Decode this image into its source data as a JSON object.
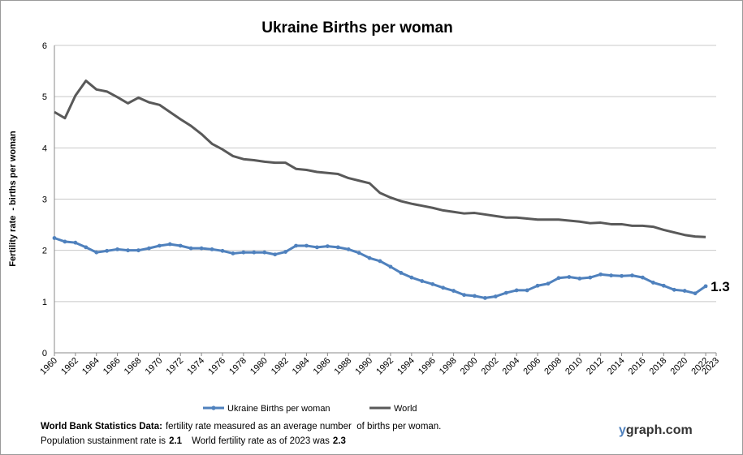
{
  "chart_data": {
    "type": "line",
    "title": "Ukraine Births per woman",
    "ylabel": "Fertility rate  - births per woman",
    "x": [
      1960,
      1961,
      1962,
      1963,
      1964,
      1965,
      1966,
      1967,
      1968,
      1969,
      1970,
      1971,
      1972,
      1973,
      1974,
      1975,
      1976,
      1977,
      1978,
      1979,
      1980,
      1981,
      1982,
      1983,
      1984,
      1985,
      1986,
      1987,
      1988,
      1989,
      1990,
      1991,
      1992,
      1993,
      1994,
      1995,
      1996,
      1997,
      1998,
      1999,
      2000,
      2001,
      2002,
      2003,
      2004,
      2005,
      2006,
      2007,
      2008,
      2009,
      2010,
      2011,
      2012,
      2013,
      2014,
      2015,
      2016,
      2017,
      2018,
      2019,
      2020,
      2021,
      2022
    ],
    "series": [
      {
        "name": "Ukraine Births per woman",
        "color": "#4f81bd",
        "markers": true,
        "values": [
          2.24,
          2.17,
          2.15,
          2.06,
          1.96,
          1.99,
          2.02,
          2.0,
          2.0,
          2.04,
          2.09,
          2.12,
          2.09,
          2.04,
          2.04,
          2.02,
          1.99,
          1.94,
          1.96,
          1.96,
          1.96,
          1.92,
          1.97,
          2.09,
          2.09,
          2.06,
          2.08,
          2.06,
          2.02,
          1.95,
          1.85,
          1.79,
          1.68,
          1.56,
          1.47,
          1.4,
          1.34,
          1.27,
          1.21,
          1.13,
          1.11,
          1.07,
          1.1,
          1.17,
          1.22,
          1.22,
          1.31,
          1.35,
          1.46,
          1.48,
          1.45,
          1.47,
          1.53,
          1.51,
          1.5,
          1.51,
          1.47,
          1.37,
          1.31,
          1.23,
          1.21,
          1.16,
          1.3
        ]
      },
      {
        "name": "World",
        "color": "#595959",
        "markers": false,
        "values": [
          4.7,
          4.58,
          5.02,
          5.31,
          5.14,
          5.1,
          4.99,
          4.87,
          4.98,
          4.89,
          4.84,
          4.7,
          4.56,
          4.43,
          4.27,
          4.08,
          3.97,
          3.84,
          3.78,
          3.76,
          3.73,
          3.71,
          3.71,
          3.59,
          3.57,
          3.53,
          3.51,
          3.49,
          3.41,
          3.36,
          3.31,
          3.12,
          3.03,
          2.96,
          2.91,
          2.87,
          2.83,
          2.78,
          2.75,
          2.72,
          2.73,
          2.7,
          2.67,
          2.64,
          2.64,
          2.62,
          2.6,
          2.6,
          2.6,
          2.58,
          2.56,
          2.53,
          2.54,
          2.51,
          2.51,
          2.48,
          2.48,
          2.46,
          2.4,
          2.35,
          2.3,
          2.27,
          2.26
        ]
      }
    ],
    "xlim": [
      1960,
      2023
    ],
    "xticks": [
      1960,
      1962,
      1964,
      1966,
      1968,
      1970,
      1972,
      1974,
      1976,
      1978,
      1980,
      1982,
      1984,
      1986,
      1988,
      1990,
      1992,
      1994,
      1996,
      1998,
      2000,
      2002,
      2004,
      2006,
      2008,
      2010,
      2012,
      2014,
      2016,
      2018,
      2020,
      2022,
      2023
    ],
    "ylim": [
      0,
      6
    ],
    "yticks": [
      0,
      1,
      2,
      3,
      4,
      5,
      6
    ],
    "grid": true,
    "legend": "bottom",
    "notes": {
      "source": "World Bank Statistics Data:",
      "description": "fertility rate measured as an average number  of births per woman.",
      "sustainment_text": "Population sustainment rate is",
      "sustainment_rate": 2.1,
      "world_text": "World fertility rate as of 2023 was",
      "world_rate": 2.3
    },
    "brand": "ygraph.com"
  }
}
